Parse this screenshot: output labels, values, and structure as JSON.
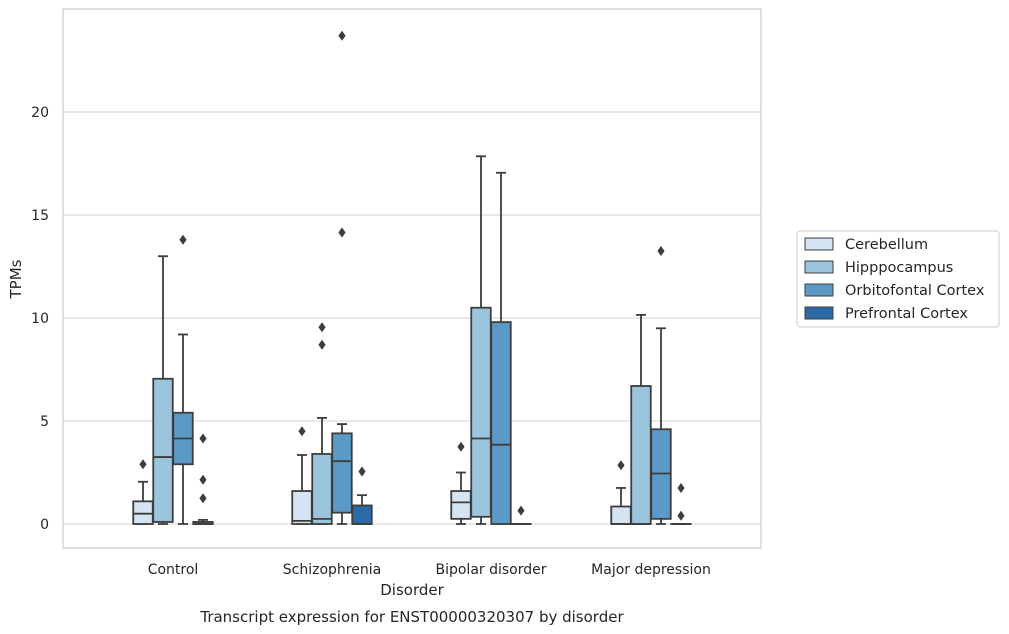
{
  "chart_data": {
    "type": "box",
    "caption": "Transcript expression for ENST00000320307 by disorder",
    "xlabel": "Disorder",
    "ylabel": "TPMs",
    "ylim": [
      -1.15,
      24.6
    ],
    "yticks": [
      0,
      5,
      10,
      15,
      20
    ],
    "grid": "horizontal",
    "legend_position": "right",
    "categories": [
      "Control",
      "Schizophrenia",
      "Bipolar disorder",
      "Major depression"
    ],
    "series": [
      {
        "name": "Cerebellum",
        "color": "#d4e4f2",
        "boxes": [
          {
            "q1": 0.0,
            "median": 0.5,
            "q3": 1.1,
            "whisker_low": 0.0,
            "whisker_high": 2.05,
            "outliers": [
              2.9
            ]
          },
          {
            "q1": 0.0,
            "median": 0.15,
            "q3": 1.6,
            "whisker_low": 0.0,
            "whisker_high": 3.35,
            "outliers": [
              4.5
            ]
          },
          {
            "q1": 0.25,
            "median": 1.05,
            "q3": 1.6,
            "whisker_low": 0.0,
            "whisker_high": 2.5,
            "outliers": [
              3.75
            ]
          },
          {
            "q1": 0.0,
            "median": 0.0,
            "q3": 0.85,
            "whisker_low": 0.0,
            "whisker_high": 1.75,
            "outliers": [
              2.85
            ]
          }
        ]
      },
      {
        "name": "Hipppocampus",
        "color": "#9ac5dd",
        "boxes": [
          {
            "q1": 0.1,
            "median": 3.25,
            "q3": 7.05,
            "whisker_low": 0.0,
            "whisker_high": 13.0,
            "outliers": []
          },
          {
            "q1": 0.0,
            "median": 0.25,
            "q3": 3.4,
            "whisker_low": 0.0,
            "whisker_high": 5.15,
            "outliers": [
              8.7,
              9.55
            ]
          },
          {
            "q1": 0.35,
            "median": 4.15,
            "q3": 10.5,
            "whisker_low": 0.0,
            "whisker_high": 17.85,
            "outliers": []
          },
          {
            "q1": 0.0,
            "median": 0.0,
            "q3": 6.7,
            "whisker_low": 0.0,
            "whisker_high": 10.15,
            "outliers": []
          }
        ]
      },
      {
        "name": "Orbitofontal Cortex",
        "color": "#5b9ac6",
        "boxes": [
          {
            "q1": 2.9,
            "median": 4.15,
            "q3": 5.4,
            "whisker_low": 0.0,
            "whisker_high": 9.2,
            "outliers": [
              13.8
            ]
          },
          {
            "q1": 0.55,
            "median": 3.05,
            "q3": 4.4,
            "whisker_low": 0.0,
            "whisker_high": 4.85,
            "outliers": [
              14.15,
              23.7
            ]
          },
          {
            "q1": 0.0,
            "median": 3.85,
            "q3": 9.8,
            "whisker_low": 0.0,
            "whisker_high": 17.05,
            "outliers": []
          },
          {
            "q1": 0.25,
            "median": 2.45,
            "q3": 4.6,
            "whisker_low": 0.0,
            "whisker_high": 9.5,
            "outliers": [
              13.25
            ]
          }
        ]
      },
      {
        "name": "Prefrontal Cortex",
        "color": "#2b6aa7",
        "boxes": [
          {
            "q1": 0.0,
            "median": 0.0,
            "q3": 0.1,
            "whisker_low": 0.0,
            "whisker_high": 0.2,
            "outliers": [
              1.25,
              2.15,
              4.15
            ]
          },
          {
            "q1": 0.0,
            "median": 0.0,
            "q3": 0.9,
            "whisker_low": 0.0,
            "whisker_high": 1.4,
            "outliers": [
              2.55
            ]
          },
          {
            "q1": 0.0,
            "median": 0.0,
            "q3": 0.0,
            "whisker_low": 0.0,
            "whisker_high": 0.0,
            "outliers": [
              0.65
            ]
          },
          {
            "q1": 0.0,
            "median": 0.0,
            "q3": 0.0,
            "whisker_low": 0.0,
            "whisker_high": 0.0,
            "outliers": [
              0.4,
              1.75
            ]
          }
        ]
      }
    ]
  }
}
